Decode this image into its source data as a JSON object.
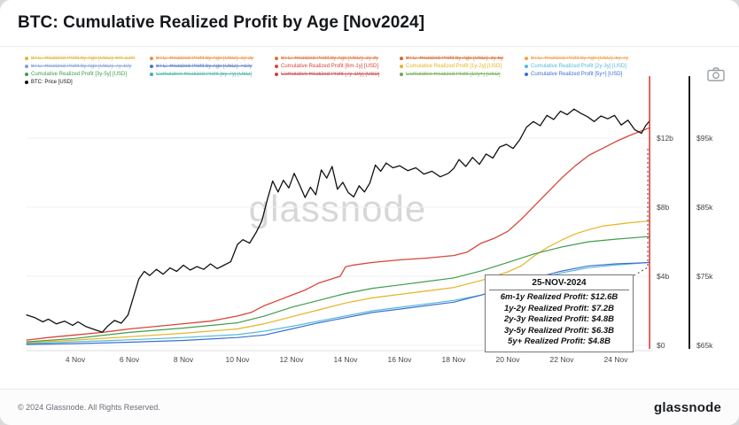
{
  "header": {
    "title": "BTC: Cumulative Realized Profit by Age [Nov2024]"
  },
  "legend": {
    "rows": [
      [
        {
          "label": "BTC: Realized Profit by Age [USD]: 6m-12m",
          "color": "#e3b53a",
          "struck": true
        },
        {
          "label": "BTC: Realized Profit by Age [USD]: 1y-2y",
          "color": "#ef8e3c",
          "struck": true
        },
        {
          "label": "BTC: Realized Profit by Age [USD]: 2y-3y",
          "color": "#e2703a",
          "struck": true
        },
        {
          "label": "BTC: Realized Profit by Age [USD]: 3y-5y",
          "color": "#d7642c",
          "struck": true
        },
        {
          "label": "BTC: Realized Profit by Age [USD]: 5y-7y",
          "color": "#f0a04b",
          "struck": true
        }
      ],
      [
        {
          "label": "BTC: Realized Profit by Age [USD]: 7y-10y",
          "color": "#7c9ed9",
          "struck": true
        },
        {
          "label": "BTC: Realized Profit by Age [USD]: >10y",
          "color": "#4f74c9",
          "struck": true
        },
        {
          "label": "Cumulative Realized Profit [6m-1y] [USD]",
          "color": "#d9453a",
          "struck": false
        },
        {
          "label": "Cumulative Realized Profit [1y-2y] [USD]",
          "color": "#e6b422",
          "struck": false
        },
        {
          "label": "Cumulative Realized Profit [2y-3y] [USD]",
          "color": "#56b9d8",
          "struck": false
        }
      ],
      [
        {
          "label": "Cumulative Realized Profit [3y-5y] [USD]",
          "color": "#3f9d4e",
          "struck": false
        },
        {
          "label": "Cumulative Realized Profit [5y-7y] [USD]",
          "color": "#41b0a6",
          "struck": true
        },
        {
          "label": "Cumulative Realized Profit [7y-10y] [USD]",
          "color": "#c94040",
          "struck": true
        },
        {
          "label": "Cumulative Realized Profit [10y+] [USD]",
          "color": "#6aa84f",
          "struck": true
        },
        {
          "label": "Cumulative Realized Profit [5y+] [USD]",
          "color": "#3b6fd4",
          "struck": false
        }
      ],
      [
        {
          "label": "BTC: Price [USD]",
          "color": "#111111",
          "struck": false
        }
      ]
    ]
  },
  "chart_data": {
    "type": "line",
    "title": "BTC: Cumulative Realized Profit by Age [Nov2024]",
    "x_ticks": [
      {
        "label": "4 Nov",
        "day": 4
      },
      {
        "label": "6 Nov",
        "day": 6
      },
      {
        "label": "8 Nov",
        "day": 8
      },
      {
        "label": "10 Nov",
        "day": 10
      },
      {
        "label": "12 Nov",
        "day": 12
      },
      {
        "label": "14 Nov",
        "day": 14
      },
      {
        "label": "16 Nov",
        "day": 16
      },
      {
        "label": "18 Nov",
        "day": 18
      },
      {
        "label": "20 Nov",
        "day": 20
      },
      {
        "label": "22 Nov",
        "day": 22
      },
      {
        "label": "24 Nov",
        "day": 24
      }
    ],
    "profit_axis": {
      "unit": "USD billions",
      "range": [
        0,
        15.6
      ],
      "ticks": [
        {
          "label": "$12b",
          "value": 12
        },
        {
          "label": "$8b",
          "value": 8
        },
        {
          "label": "$4b",
          "value": 4
        },
        {
          "label": "$0",
          "value": 0
        }
      ]
    },
    "price_axis": {
      "unit": "USD thousands",
      "range": [
        65,
        104
      ],
      "ticks": [
        {
          "label": "$95k",
          "value": 95
        },
        {
          "label": "$85k",
          "value": 85
        },
        {
          "label": "$75k",
          "value": 75
        },
        {
          "label": "$65k",
          "value": 65
        }
      ]
    },
    "marker_line": {
      "day": 25.25,
      "color": "#e0312e"
    },
    "series": [
      {
        "id": "cumulative-6m-1y",
        "name": "Cumulative Realized Profit [6m-1y] [USD]",
        "color": "#d9453a",
        "scale": "profit",
        "width": 1.3,
        "end_value_billion": 12.6,
        "points": [
          [
            2.2,
            0.3
          ],
          [
            3,
            0.45
          ],
          [
            4,
            0.6
          ],
          [
            5,
            0.75
          ],
          [
            6,
            0.95
          ],
          [
            7,
            1.1
          ],
          [
            8,
            1.25
          ],
          [
            9,
            1.4
          ],
          [
            10,
            1.7
          ],
          [
            10.5,
            1.9
          ],
          [
            11,
            2.3
          ],
          [
            11.5,
            2.6
          ],
          [
            12,
            2.9
          ],
          [
            12.5,
            3.2
          ],
          [
            13,
            3.6
          ],
          [
            13.5,
            3.85
          ],
          [
            13.8,
            4.0
          ],
          [
            14,
            4.55
          ],
          [
            14.3,
            4.65
          ],
          [
            15,
            4.8
          ],
          [
            16,
            4.95
          ],
          [
            17,
            5.05
          ],
          [
            18,
            5.2
          ],
          [
            18.5,
            5.4
          ],
          [
            19,
            5.9
          ],
          [
            19.5,
            6.2
          ],
          [
            20,
            6.6
          ],
          [
            20.5,
            7.3
          ],
          [
            21,
            8.1
          ],
          [
            21.5,
            8.9
          ],
          [
            22,
            9.7
          ],
          [
            22.5,
            10.4
          ],
          [
            23,
            11.0
          ],
          [
            23.5,
            11.4
          ],
          [
            24,
            11.8
          ],
          [
            24.5,
            12.15
          ],
          [
            25,
            12.45
          ],
          [
            25.25,
            12.6
          ]
        ]
      },
      {
        "id": "cumulative-1y-2y",
        "name": "Cumulative Realized Profit [1y-2y] [USD]",
        "color": "#e6b422",
        "scale": "profit",
        "width": 1.2,
        "end_value_billion": 7.2,
        "points": [
          [
            2.2,
            0.15
          ],
          [
            4,
            0.3
          ],
          [
            6,
            0.5
          ],
          [
            8,
            0.7
          ],
          [
            10,
            0.95
          ],
          [
            11,
            1.25
          ],
          [
            12,
            1.65
          ],
          [
            13,
            2.05
          ],
          [
            14,
            2.45
          ],
          [
            15,
            2.75
          ],
          [
            16,
            2.95
          ],
          [
            17,
            3.15
          ],
          [
            18,
            3.35
          ],
          [
            19,
            3.75
          ],
          [
            20,
            4.25
          ],
          [
            20.5,
            4.6
          ],
          [
            21,
            5.2
          ],
          [
            21.5,
            5.7
          ],
          [
            22,
            6.1
          ],
          [
            22.5,
            6.45
          ],
          [
            23,
            6.7
          ],
          [
            23.5,
            6.9
          ],
          [
            24,
            7.0
          ],
          [
            24.5,
            7.1
          ],
          [
            25,
            7.17
          ],
          [
            25.25,
            7.2
          ]
        ]
      },
      {
        "id": "cumulative-2y-3y",
        "name": "Cumulative Realized Profit [2y-3y] [USD]",
        "color": "#56b9d8",
        "scale": "profit",
        "width": 1.2,
        "end_value_billion": 4.8,
        "points": [
          [
            2.2,
            0.1
          ],
          [
            4,
            0.2
          ],
          [
            6,
            0.32
          ],
          [
            8,
            0.45
          ],
          [
            10,
            0.62
          ],
          [
            11,
            0.82
          ],
          [
            12,
            1.1
          ],
          [
            13,
            1.4
          ],
          [
            14,
            1.7
          ],
          [
            15,
            2.0
          ],
          [
            16,
            2.2
          ],
          [
            17,
            2.4
          ],
          [
            18,
            2.6
          ],
          [
            19,
            2.9
          ],
          [
            20,
            3.3
          ],
          [
            21,
            3.8
          ],
          [
            22,
            4.2
          ],
          [
            23,
            4.5
          ],
          [
            24,
            4.65
          ],
          [
            25,
            4.77
          ],
          [
            25.25,
            4.8
          ]
        ]
      },
      {
        "id": "cumulative-3y-5y",
        "name": "Cumulative Realized Profit [3y-5y] [USD]",
        "color": "#3f9d4e",
        "scale": "profit",
        "width": 1.2,
        "end_value_billion": 6.3,
        "points": [
          [
            2.2,
            0.2
          ],
          [
            4,
            0.4
          ],
          [
            6,
            0.75
          ],
          [
            8,
            1.0
          ],
          [
            10,
            1.3
          ],
          [
            11,
            1.7
          ],
          [
            12,
            2.2
          ],
          [
            13,
            2.6
          ],
          [
            14,
            3.0
          ],
          [
            15,
            3.3
          ],
          [
            16,
            3.5
          ],
          [
            17,
            3.7
          ],
          [
            18,
            3.9
          ],
          [
            19,
            4.3
          ],
          [
            20,
            4.8
          ],
          [
            21,
            5.3
          ],
          [
            22,
            5.7
          ],
          [
            23,
            6.0
          ],
          [
            24,
            6.15
          ],
          [
            25,
            6.27
          ],
          [
            25.25,
            6.3
          ]
        ]
      },
      {
        "id": "cumulative-5y-plus",
        "name": "Cumulative Realized Profit [5y+] [USD]",
        "color": "#3b6fd4",
        "scale": "profit",
        "width": 1.2,
        "end_value_billion": 4.8,
        "points": [
          [
            2.2,
            0.05
          ],
          [
            4,
            0.1
          ],
          [
            6,
            0.18
          ],
          [
            8,
            0.28
          ],
          [
            10,
            0.45
          ],
          [
            11,
            0.6
          ],
          [
            12,
            0.95
          ],
          [
            13,
            1.3
          ],
          [
            14,
            1.6
          ],
          [
            15,
            1.9
          ],
          [
            16,
            2.1
          ],
          [
            17,
            2.3
          ],
          [
            18,
            2.5
          ],
          [
            19,
            2.9
          ],
          [
            20,
            3.4
          ],
          [
            21,
            3.9
          ],
          [
            22,
            4.3
          ],
          [
            23,
            4.6
          ],
          [
            24,
            4.72
          ],
          [
            25,
            4.78
          ],
          [
            25.25,
            4.8
          ]
        ]
      },
      {
        "id": "btc-price",
        "name": "BTC: Price [USD]",
        "color": "#111111",
        "scale": "price",
        "width": 1.3,
        "points": [
          [
            2.2,
            69.4
          ],
          [
            2.5,
            69.0
          ],
          [
            2.8,
            68.4
          ],
          [
            3.0,
            68.8
          ],
          [
            3.3,
            68.1
          ],
          [
            3.6,
            68.5
          ],
          [
            3.9,
            67.9
          ],
          [
            4.1,
            68.4
          ],
          [
            4.4,
            67.7
          ],
          [
            4.7,
            67.3
          ],
          [
            5.0,
            66.9
          ],
          [
            5.2,
            67.8
          ],
          [
            5.45,
            68.6
          ],
          [
            5.7,
            68.2
          ],
          [
            5.95,
            69.4
          ],
          [
            6.15,
            72.0
          ],
          [
            6.35,
            74.6
          ],
          [
            6.55,
            75.7
          ],
          [
            6.75,
            75.1
          ],
          [
            7.0,
            76.0
          ],
          [
            7.25,
            75.3
          ],
          [
            7.5,
            76.2
          ],
          [
            7.75,
            75.7
          ],
          [
            8.0,
            76.6
          ],
          [
            8.25,
            75.9
          ],
          [
            8.5,
            76.4
          ],
          [
            8.75,
            76.0
          ],
          [
            9.0,
            76.8
          ],
          [
            9.25,
            76.1
          ],
          [
            9.5,
            76.6
          ],
          [
            9.75,
            77.1
          ],
          [
            10.0,
            79.6
          ],
          [
            10.2,
            80.3
          ],
          [
            10.45,
            79.8
          ],
          [
            10.7,
            81.4
          ],
          [
            10.9,
            83.0
          ],
          [
            11.1,
            86.0
          ],
          [
            11.3,
            88.8
          ],
          [
            11.5,
            87.2
          ],
          [
            11.7,
            88.9
          ],
          [
            11.9,
            87.8
          ],
          [
            12.1,
            89.9
          ],
          [
            12.3,
            88.2
          ],
          [
            12.5,
            86.4
          ],
          [
            12.7,
            87.9
          ],
          [
            12.9,
            86.8
          ],
          [
            13.1,
            90.4
          ],
          [
            13.3,
            89.2
          ],
          [
            13.5,
            90.9
          ],
          [
            13.7,
            87.6
          ],
          [
            13.9,
            88.6
          ],
          [
            14.1,
            87.1
          ],
          [
            14.3,
            86.5
          ],
          [
            14.5,
            88.1
          ],
          [
            14.7,
            87.2
          ],
          [
            14.9,
            88.5
          ],
          [
            15.1,
            91.1
          ],
          [
            15.3,
            90.2
          ],
          [
            15.5,
            91.4
          ],
          [
            15.75,
            90.7
          ],
          [
            16.0,
            91.0
          ],
          [
            16.3,
            90.3
          ],
          [
            16.6,
            90.7
          ],
          [
            16.9,
            89.8
          ],
          [
            17.2,
            90.2
          ],
          [
            17.5,
            89.4
          ],
          [
            17.8,
            89.9
          ],
          [
            18.0,
            90.6
          ],
          [
            18.2,
            91.9
          ],
          [
            18.45,
            90.9
          ],
          [
            18.7,
            92.2
          ],
          [
            18.95,
            91.2
          ],
          [
            19.2,
            92.7
          ],
          [
            19.45,
            92.1
          ],
          [
            19.7,
            93.7
          ],
          [
            19.95,
            94.1
          ],
          [
            20.2,
            93.5
          ],
          [
            20.45,
            94.8
          ],
          [
            20.7,
            96.6
          ],
          [
            20.95,
            97.4
          ],
          [
            21.2,
            96.8
          ],
          [
            21.45,
            98.3
          ],
          [
            21.7,
            97.7
          ],
          [
            21.95,
            98.9
          ],
          [
            22.2,
            98.4
          ],
          [
            22.45,
            99.2
          ],
          [
            22.7,
            98.6
          ],
          [
            22.95,
            98.1
          ],
          [
            23.2,
            97.4
          ],
          [
            23.45,
            98.2
          ],
          [
            23.7,
            97.8
          ],
          [
            23.95,
            98.3
          ],
          [
            24.2,
            96.9
          ],
          [
            24.45,
            97.6
          ],
          [
            24.7,
            96.2
          ],
          [
            24.95,
            95.7
          ],
          [
            25.1,
            96.8
          ],
          [
            25.25,
            97.5
          ]
        ]
      }
    ],
    "annotation": {
      "title": "25-NOV-2024",
      "lines": [
        "6m-1y Realized Profit: $12.6B",
        "1y-2y Realized Profit: $7.2B",
        "2y-3y Realized Profit: $4.8B",
        "3y-5y Realized Profit: $6.3B",
        "5y+ Realized Profit: $4.8B"
      ]
    },
    "legend_position": "top",
    "grid": true
  },
  "watermark": {
    "text": "glassnode"
  },
  "footer": {
    "copyright": "© 2024 Glassnode. All Rights Reserved.",
    "brand": "glassnode"
  }
}
